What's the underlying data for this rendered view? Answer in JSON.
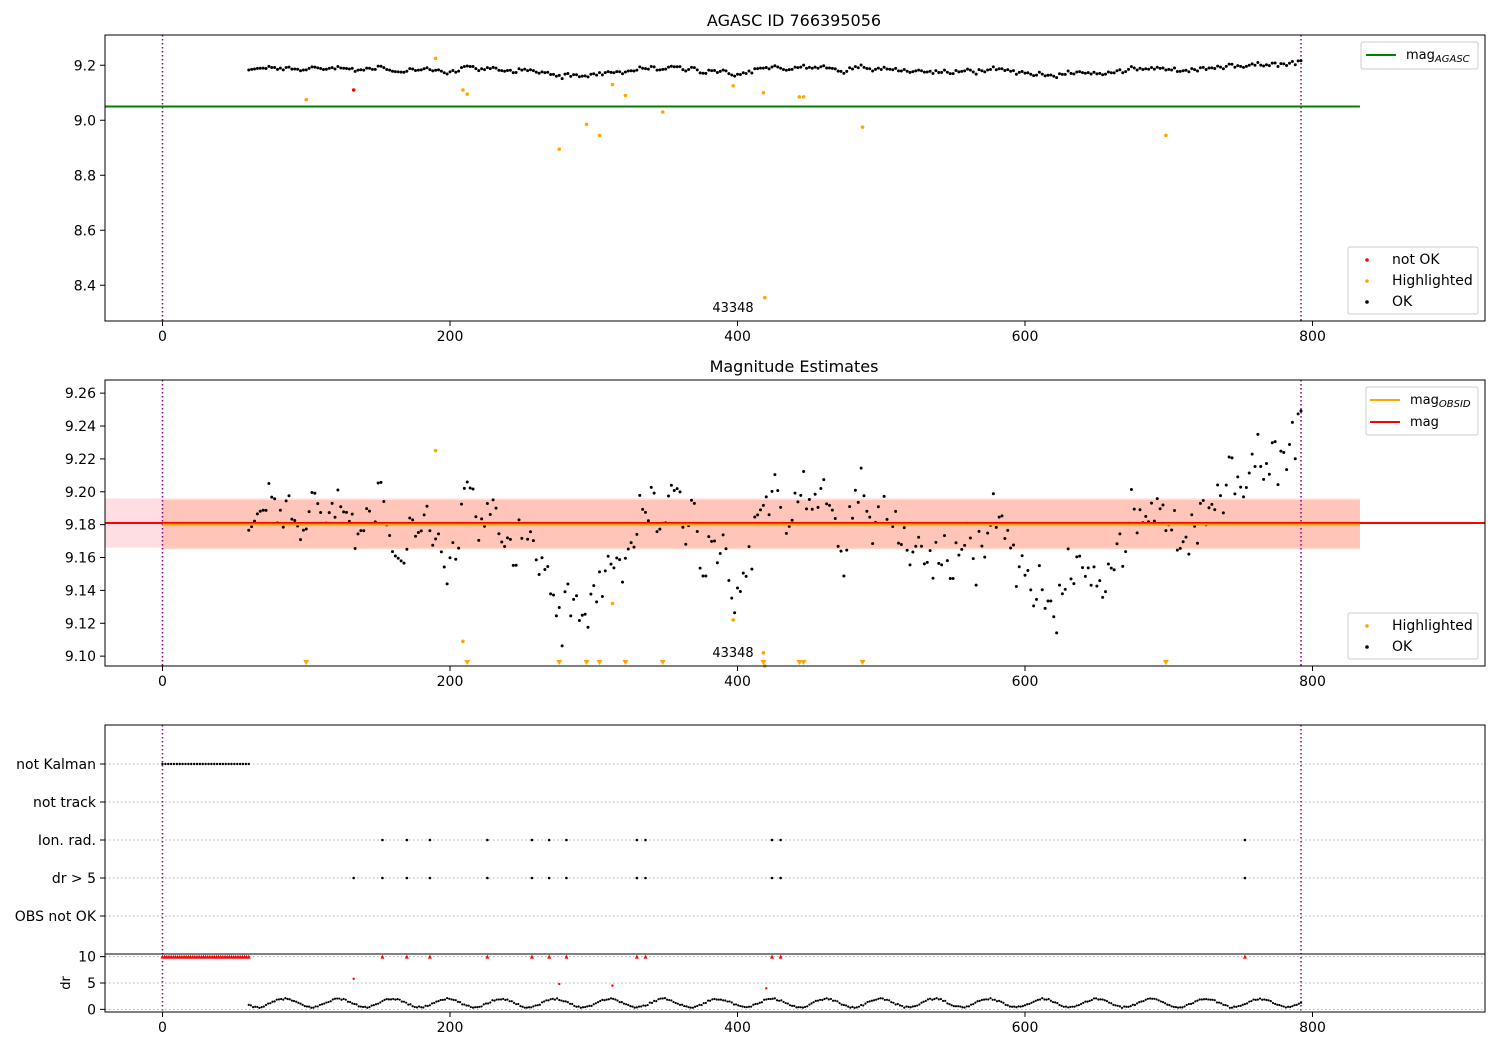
{
  "chart_data": [
    {
      "type": "scatter",
      "title": "AGASC ID 766395056",
      "x_range": [
        -40,
        920
      ],
      "ylim": [
        8.27,
        9.31
      ],
      "yticks": [
        "8.4",
        "8.6",
        "8.8",
        "9.0",
        "9.2"
      ],
      "ytick_values": [
        8.4,
        8.6,
        8.8,
        9.0,
        9.2
      ],
      "xticks": [
        "0",
        "200",
        "400",
        "600",
        "800"
      ],
      "xtick_values": [
        0,
        200,
        400,
        600,
        800
      ],
      "vlines": [
        0,
        792
      ],
      "reference_line": {
        "label": "mag",
        "label_sub": "AGASC",
        "value": 9.05,
        "x_start": -40,
        "x_end": 833,
        "color": "#008000"
      },
      "obsid_annotation": {
        "text": "43348",
        "x": 394,
        "y": 8.31
      },
      "legends": {
        "lines": [
          {
            "label": "mag",
            "sub": "AGASC",
            "color": "#008000"
          }
        ],
        "points": [
          {
            "label": "not OK",
            "color": "#ff0000"
          },
          {
            "label": "Highlighted",
            "color": "#ffa500"
          },
          {
            "label": "OK",
            "color": "#000000"
          }
        ]
      },
      "series": [
        {
          "name": "OK",
          "color": "#000000",
          "ok_band": {
            "x_start": 60,
            "x_end": 792,
            "base": 9.185,
            "amplitude": 0.02
          }
        },
        {
          "name": "Highlighted",
          "color": "#ffa500",
          "points": [
            [
              100,
              9.075
            ],
            [
              190,
              9.225
            ],
            [
              209,
              9.11
            ],
            [
              212,
              9.095
            ],
            [
              276,
              8.895
            ],
            [
              295,
              8.985
            ],
            [
              304,
              8.945
            ],
            [
              313,
              9.13
            ],
            [
              322,
              9.09
            ],
            [
              348,
              9.03
            ],
            [
              397,
              9.125
            ],
            [
              418,
              9.1
            ],
            [
              419,
              8.355
            ],
            [
              443,
              9.085
            ],
            [
              446,
              9.085
            ],
            [
              487,
              8.975
            ],
            [
              698,
              8.945
            ]
          ]
        },
        {
          "name": "not OK",
          "color": "#ff0000",
          "points": [
            [
              133,
              9.11
            ]
          ]
        }
      ]
    },
    {
      "type": "scatter",
      "title": "Magnitude Estimates",
      "x_range": [
        -40,
        920
      ],
      "ylim": [
        9.094,
        9.268
      ],
      "yticks": [
        "9.10",
        "9.12",
        "9.14",
        "9.16",
        "9.18",
        "9.20",
        "9.22",
        "9.24",
        "9.26"
      ],
      "ytick_values": [
        9.1,
        9.12,
        9.14,
        9.16,
        9.18,
        9.2,
        9.22,
        9.24,
        9.26
      ],
      "xticks": [
        "0",
        "200",
        "400",
        "600",
        "800"
      ],
      "xtick_values": [
        0,
        200,
        400,
        600,
        800
      ],
      "vlines": [
        0,
        792
      ],
      "mag_line": {
        "label": "mag",
        "value": 9.181,
        "color": "#ff0000",
        "band": [
          9.166,
          9.196
        ]
      },
      "obsid_line": {
        "label": "mag",
        "label_sub": "OBSID",
        "value": 9.18,
        "x_start": 0,
        "x_end": 833,
        "color": "#ffa500",
        "band": [
          9.165,
          9.195
        ]
      },
      "obsid_annotation": {
        "text": "43348",
        "x": 394,
        "y": 9.099
      },
      "legends": {
        "lines": [
          {
            "label": "mag",
            "sub": "OBSID",
            "color": "#ffa500"
          },
          {
            "label": "mag",
            "sub": "",
            "color": "#ff0000"
          }
        ],
        "points": [
          {
            "label": "Highlighted",
            "color": "#ffa500"
          },
          {
            "label": "OK",
            "color": "#000000"
          }
        ]
      },
      "series": [
        {
          "name": "OK",
          "color": "#000000",
          "ok_band": {
            "x_start": 60,
            "x_end": 792,
            "base": 9.18,
            "amplitude": 0.045
          }
        },
        {
          "name": "Highlighted",
          "color": "#ffa500",
          "points": [
            [
              190,
              9.225
            ],
            [
              209,
              9.109
            ],
            [
              313,
              9.132
            ],
            [
              397,
              9.122
            ],
            [
              418,
              9.102
            ],
            [
              419,
              9.094
            ]
          ]
        },
        {
          "name": "Highlighted below range",
          "color": "#ffa500",
          "marker": "triangle-down",
          "x": [
            100,
            212,
            276,
            295,
            304,
            322,
            348,
            418,
            443,
            446,
            487,
            698
          ]
        }
      ]
    },
    {
      "type": "scatter",
      "title": "",
      "x_range": [
        -40,
        920
      ],
      "xticks": [
        "0",
        "200",
        "400",
        "600",
        "800"
      ],
      "xtick_values": [
        0,
        200,
        400,
        600,
        800
      ],
      "vlines": [
        0,
        792
      ],
      "flag_rows": [
        "not Kalman",
        "not track",
        "Ion. rad.",
        "dr > 5",
        "OBS not OK"
      ],
      "flags": {
        "not Kalman": {
          "range": [
            0,
            60
          ]
        },
        "not track": {
          "points": []
        },
        "Ion. rad.": {
          "points": [
            153,
            170,
            186,
            226,
            257,
            269,
            281,
            330,
            336,
            424,
            430,
            753
          ]
        },
        "dr > 5": {
          "points": [
            133,
            153,
            170,
            186,
            226,
            257,
            269,
            281,
            330,
            336,
            424,
            430,
            753
          ]
        },
        "OBS not OK": {
          "points": []
        }
      },
      "dr": {
        "ylabel": "dr",
        "yticks": [
          "0",
          "5",
          "10"
        ],
        "ytick_values": [
          0,
          5,
          10
        ],
        "ylim": [
          -0.5,
          10.5
        ],
        "clipped_value": 10,
        "clipped_x": [
          153,
          170,
          186,
          226,
          257,
          269,
          281,
          330,
          336,
          424,
          430,
          753
        ],
        "clipped_range": [
          0,
          60
        ],
        "red_points": [
          [
            133,
            5.8
          ],
          [
            276,
            4.8
          ],
          [
            313,
            4.5
          ],
          [
            420,
            4.0
          ]
        ],
        "ok_band": {
          "x_start": 60,
          "x_end": 792,
          "base": 1.2,
          "amplitude": 1.0
        }
      }
    }
  ]
}
